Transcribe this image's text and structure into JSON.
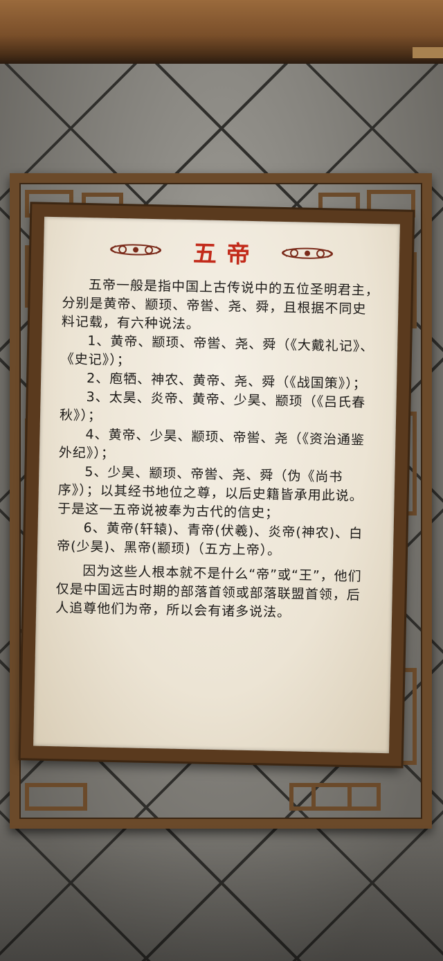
{
  "sign": {
    "title": "五帝",
    "intro": "五帝一般是指中国上古传说中的五位圣明君主，分别是黄帝、颛顼、帝喾、尧、舜，且根据不同史料记载，有六种说法。",
    "items": [
      "1、黄帝、颛顼、帝喾、尧、舜（《大戴礼记》、《史记》）；",
      "2、庖牺、神农、黄帝、尧、舜（《战国策》）；",
      "3、太昊、炎帝、黄帝、少昊、颛顼（《吕氏春秋》）；",
      "4、黄帝、少昊、颛顼、帝喾、尧（《资治通鉴外纪》）；",
      "5、少昊、颛顼、帝喾、尧、舜（伪《尚书序》）；以其经书地位之尊，以后史籍皆承用此说。于是这一五帝说被奉为古代的信史；",
      "6、黄帝(轩辕)、青帝(伏羲)、炎帝(神农)、白帝(少昊)、黑帝(颛顼)（五方上帝）。"
    ],
    "closing": "因为这些人根本就不是什么“帝”或“王”，他们仅是中国远古时期的部落首领或部落联盟首领，后人追尊他们为帝，所以会有诸多说法。"
  },
  "colors": {
    "title": "#c22a1a",
    "frame_wood": "#6b4a2a",
    "panel": "#f2ecdf",
    "ornament": "#7a2a1a"
  },
  "icons": [
    "scroll-ornament-left",
    "scroll-ornament-right"
  ]
}
